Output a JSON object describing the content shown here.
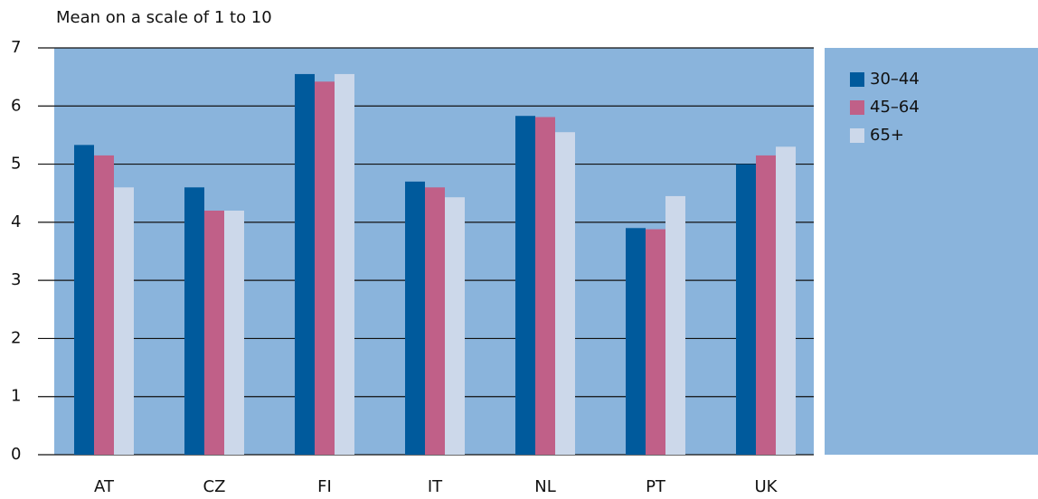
{
  "chart_data": {
    "type": "bar",
    "y_axis_label": "Mean on a scale of 1 to 10",
    "categories": [
      "AT",
      "CZ",
      "FI",
      "IT",
      "NL",
      "PT",
      "UK"
    ],
    "series": [
      {
        "name": "30–44",
        "color": "#005a9c",
        "values": [
          5.33,
          4.6,
          6.55,
          4.7,
          5.83,
          3.9,
          5.0
        ]
      },
      {
        "name": "45–64",
        "color": "#c06088",
        "values": [
          5.15,
          4.2,
          6.42,
          4.6,
          5.81,
          3.88,
          5.15
        ]
      },
      {
        "name": "65+",
        "color": "#ccd8ea",
        "values": [
          4.6,
          4.2,
          6.55,
          4.43,
          5.55,
          4.45,
          5.3
        ]
      }
    ],
    "ylim": [
      0,
      7
    ],
    "yticks": [
      0,
      1,
      2,
      3,
      4,
      5,
      6,
      7
    ],
    "grid": true,
    "background": "#8ab4dc",
    "legend": "right"
  }
}
